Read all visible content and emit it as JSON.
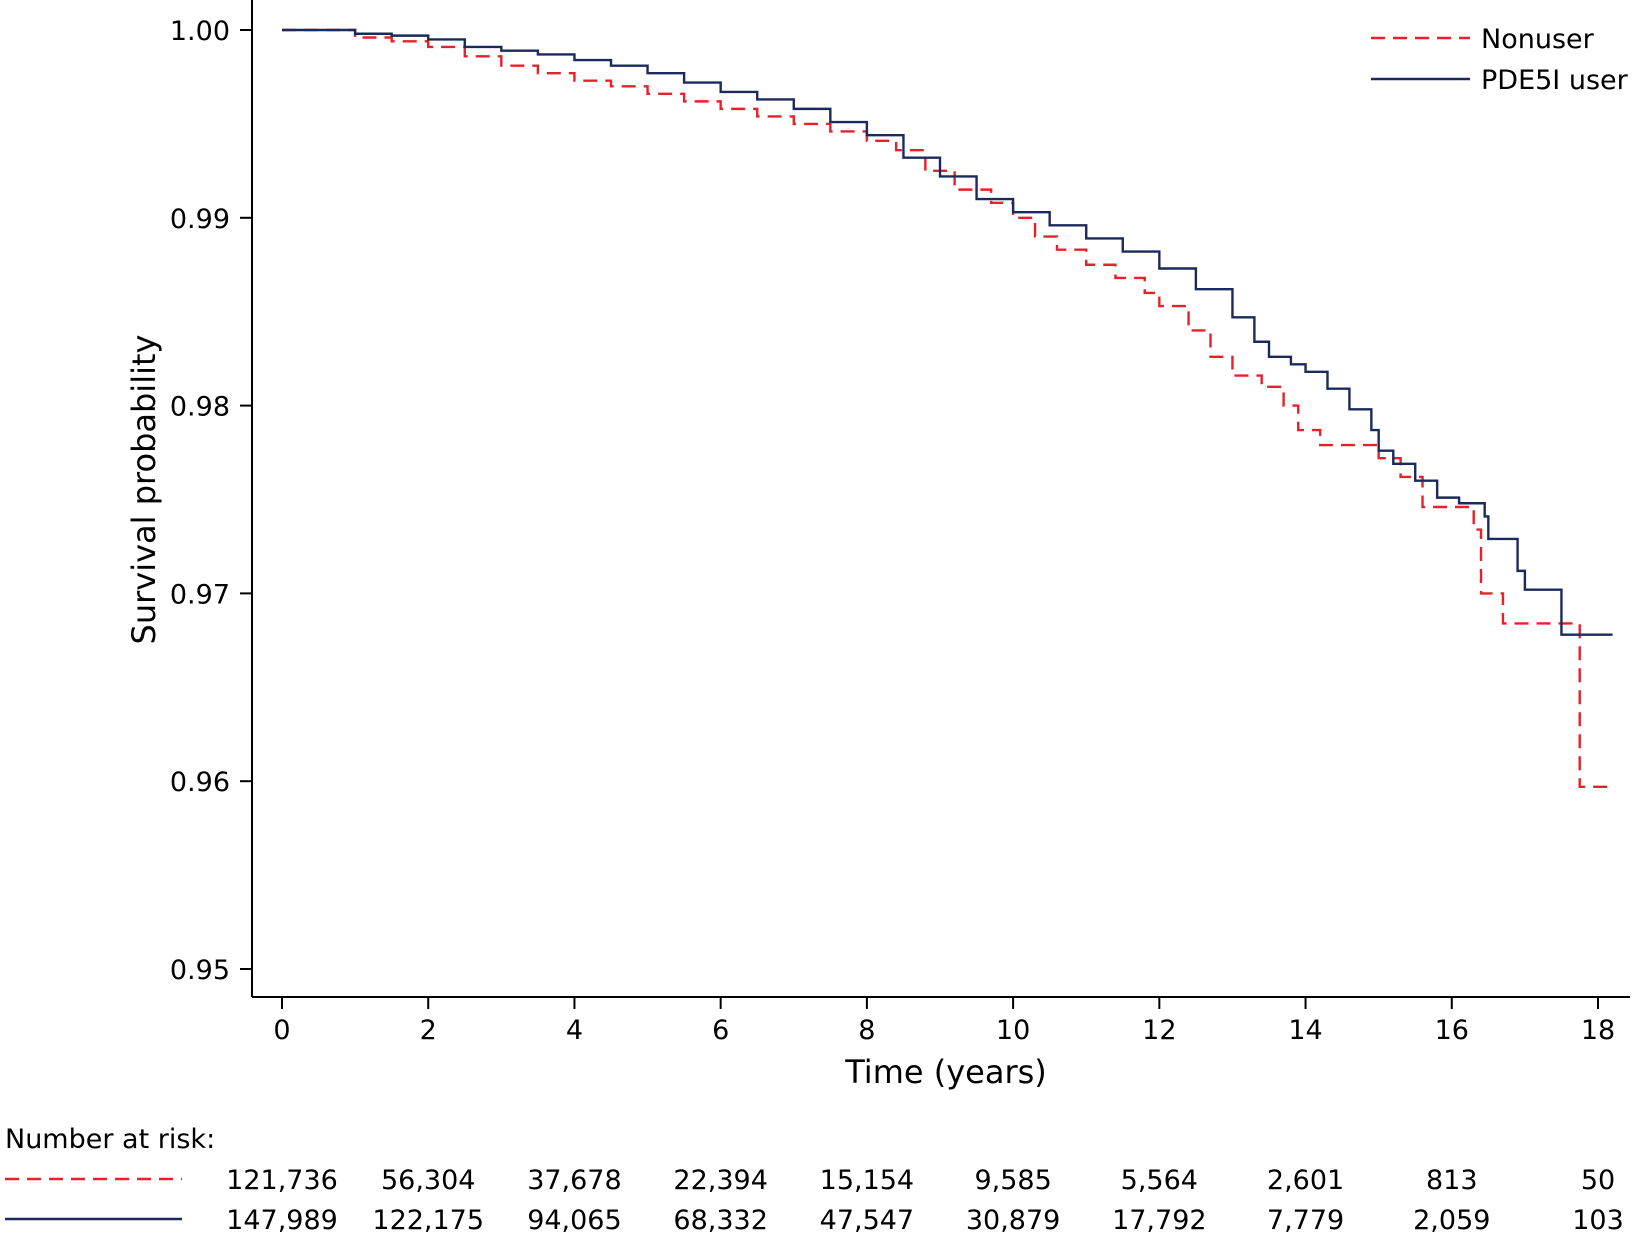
{
  "chart_data": {
    "type": "line",
    "subtype": "kaplan-meier step",
    "title": "",
    "xlabel": "Time (years)",
    "ylabel": "Survival probability",
    "xlim": [
      0,
      18.2
    ],
    "ylim": [
      0.95,
      1.0
    ],
    "x_ticks": [
      0,
      2,
      4,
      6,
      8,
      10,
      12,
      14,
      16,
      18
    ],
    "x_tick_labels": [
      "0",
      "2",
      "4",
      "6",
      "8",
      "10",
      "12",
      "14",
      "16",
      "18"
    ],
    "y_ticks": [
      1.0,
      0.99,
      0.98,
      0.97,
      0.96,
      0.95
    ],
    "y_tick_labels": [
      "1.00",
      "0.99",
      "0.98",
      "0.97",
      "0.96",
      "0.95"
    ],
    "grid": false,
    "legend_position": "top-right",
    "series": [
      {
        "name": "Nonuser",
        "color": "#e8202a",
        "line_style": "dashed",
        "x": [
          0,
          1,
          1.5,
          2,
          2.5,
          3,
          3.5,
          4,
          4.5,
          5,
          5.5,
          6,
          6.5,
          7,
          7.5,
          8,
          8.4,
          8.8,
          9.2,
          9.7,
          10,
          10.3,
          10.6,
          11,
          11.4,
          11.8,
          12,
          12.4,
          12.7,
          13,
          13.4,
          13.7,
          13.9,
          14.2,
          14.5,
          15,
          15.3,
          15.6,
          16.0,
          16.3,
          16.4,
          16.7,
          17.0,
          17.5,
          17.75,
          18.2
        ],
        "y": [
          1.0,
          0.9996,
          0.9994,
          0.9991,
          0.9986,
          0.9981,
          0.9977,
          0.9973,
          0.997,
          0.9966,
          0.9962,
          0.9958,
          0.9954,
          0.995,
          0.9946,
          0.9941,
          0.9936,
          0.9925,
          0.9915,
          0.9908,
          0.99,
          0.989,
          0.9883,
          0.9875,
          0.9868,
          0.986,
          0.9853,
          0.984,
          0.9826,
          0.9816,
          0.981,
          0.98,
          0.9787,
          0.9779,
          0.9779,
          0.9772,
          0.9762,
          0.9746,
          0.9746,
          0.9734,
          0.97,
          0.9684,
          0.9684,
          0.9684,
          0.9597,
          0.9597
        ]
      },
      {
        "name": "PDE5I user",
        "color": "#1b2a5c",
        "line_style": "solid",
        "x": [
          0,
          0.5,
          1,
          1.5,
          2,
          2.5,
          3,
          3.5,
          4,
          4.5,
          5,
          5.5,
          6,
          6.5,
          7,
          7.5,
          8,
          8.5,
          9,
          9.5,
          10,
          10.5,
          11,
          11.5,
          12,
          12.5,
          13,
          13.3,
          13.5,
          13.8,
          14,
          14.3,
          14.6,
          14.9,
          15.0,
          15.2,
          15.5,
          15.8,
          16.1,
          16.3,
          16.45,
          16.5,
          16.8,
          16.9,
          17.0,
          17.5,
          18.2
        ],
        "y": [
          1.0,
          1.0,
          0.9998,
          0.9997,
          0.9995,
          0.9991,
          0.9989,
          0.9987,
          0.9984,
          0.9981,
          0.9977,
          0.9972,
          0.9967,
          0.9963,
          0.9958,
          0.9951,
          0.9944,
          0.9932,
          0.9922,
          0.991,
          0.9903,
          0.9896,
          0.9889,
          0.9882,
          0.9873,
          0.9862,
          0.9847,
          0.9834,
          0.9826,
          0.9822,
          0.9818,
          0.9809,
          0.9798,
          0.9787,
          0.9776,
          0.9769,
          0.976,
          0.9751,
          0.9748,
          0.9748,
          0.9741,
          0.9729,
          0.9729,
          0.9712,
          0.9702,
          0.9678,
          0.9678
        ]
      }
    ],
    "risk_table": {
      "label": "Number at risk:",
      "times": [
        0,
        2,
        4,
        6,
        8,
        10,
        12,
        14,
        16,
        18
      ],
      "rows": [
        {
          "series": "Nonuser",
          "values": [
            "121,736",
            "56,304",
            "37,678",
            "22,394",
            "15,154",
            "9,585",
            "5,564",
            "2,601",
            "813",
            "50"
          ]
        },
        {
          "series": "PDE5I user",
          "values": [
            "147,989",
            "122,175",
            "94,065",
            "68,332",
            "47,547",
            "30,879",
            "17,792",
            "7,779",
            "2,059",
            "103"
          ]
        }
      ]
    }
  }
}
